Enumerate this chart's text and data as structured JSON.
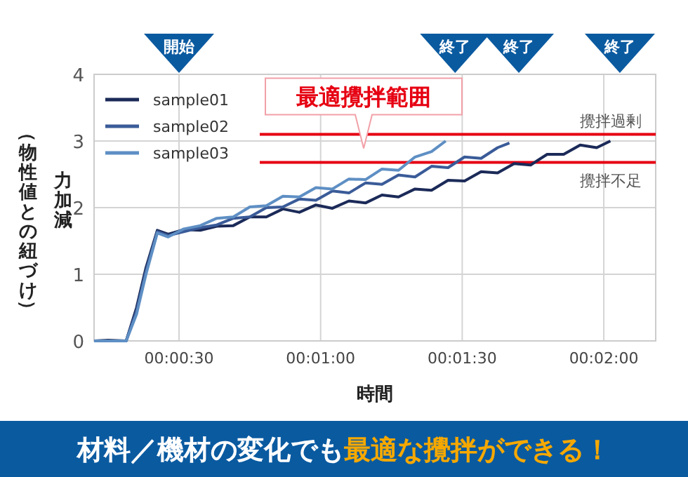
{
  "chart_data": {
    "type": "line",
    "xlabel": "時間",
    "ylabel": "力加減",
    "x": [
      12,
      15,
      18.8,
      21,
      23,
      25.4,
      27.7,
      31,
      34.5,
      38,
      41.5,
      45,
      48.5,
      52,
      55.5,
      59,
      62.5,
      66,
      69.5,
      73,
      76.5,
      80,
      83.5,
      87,
      90.5,
      94,
      97.5,
      101,
      104.5,
      108,
      111.5,
      115,
      118.5,
      121.4
    ],
    "series": [
      {
        "name": "sample01",
        "color": "#1b2a58",
        "values": [
          0,
          0.01,
          0,
          0.5,
          1.1,
          1.66,
          1.6,
          1.67,
          1.66,
          1.72,
          1.73,
          1.86,
          1.86,
          1.98,
          1.93,
          2.04,
          1.99,
          2.1,
          2.07,
          2.19,
          2.16,
          2.28,
          2.26,
          2.41,
          2.4,
          2.54,
          2.52,
          2.66,
          2.64,
          2.8,
          2.8,
          2.94,
          2.9,
          3.0
        ]
      },
      {
        "name": "sample02",
        "color": "#3a5b98",
        "x": [
          12,
          15,
          18.8,
          21,
          23,
          25.4,
          27.7,
          31,
          34.5,
          38,
          41.5,
          45,
          48.5,
          52,
          55.5,
          59,
          62.5,
          66,
          69.5,
          73,
          76.5,
          80,
          83.5,
          87,
          90.5,
          94,
          97.5,
          100
        ],
        "values": [
          0,
          0,
          0,
          0.45,
          1.05,
          1.64,
          1.58,
          1.64,
          1.7,
          1.74,
          1.84,
          1.86,
          2.0,
          2.01,
          2.13,
          2.11,
          2.25,
          2.22,
          2.37,
          2.35,
          2.49,
          2.46,
          2.62,
          2.6,
          2.76,
          2.74,
          2.9,
          2.97
        ]
      },
      {
        "name": "sample03",
        "color": "#5e8fc4",
        "x": [
          12,
          15,
          18.8,
          21,
          23,
          25.4,
          27.7,
          31,
          34.5,
          38,
          41.5,
          45,
          48.5,
          52,
          55.5,
          59,
          62.5,
          66,
          69.5,
          73,
          76.5,
          80,
          83.5,
          86.5
        ],
        "values": [
          0,
          0,
          0,
          0.4,
          1.0,
          1.62,
          1.56,
          1.68,
          1.73,
          1.84,
          1.86,
          2.01,
          2.03,
          2.17,
          2.16,
          2.3,
          2.28,
          2.43,
          2.42,
          2.58,
          2.56,
          2.76,
          2.84,
          3.0
        ]
      }
    ],
    "xlim": [
      12,
      131
    ],
    "xticks": [
      {
        "value": 30,
        "label": "00:00:30"
      },
      {
        "value": 60,
        "label": "00:01:00"
      },
      {
        "value": 90,
        "label": "00:01:30"
      },
      {
        "value": 120,
        "label": "00:02:00"
      }
    ],
    "ylim": [
      0,
      4
    ],
    "yticks": [
      0,
      1,
      2,
      3,
      4
    ],
    "grid": true,
    "legend": "top left",
    "marker": "none",
    "line_style": "solid",
    "ref_lines": [
      {
        "axis": "y",
        "value": 3.1,
        "label": "攪拌過剰",
        "color": "#e60012"
      },
      {
        "axis": "y",
        "value": 2.68,
        "label": "攪拌不足",
        "color": "#e60012"
      }
    ],
    "annotations": [
      "最適攪拌範囲",
      "開始",
      "終了",
      "終了",
      "終了",
      "（物性値との紐づけ）",
      "材料／機材の変化でも",
      "最適な攪拌ができる！"
    ]
  }
}
